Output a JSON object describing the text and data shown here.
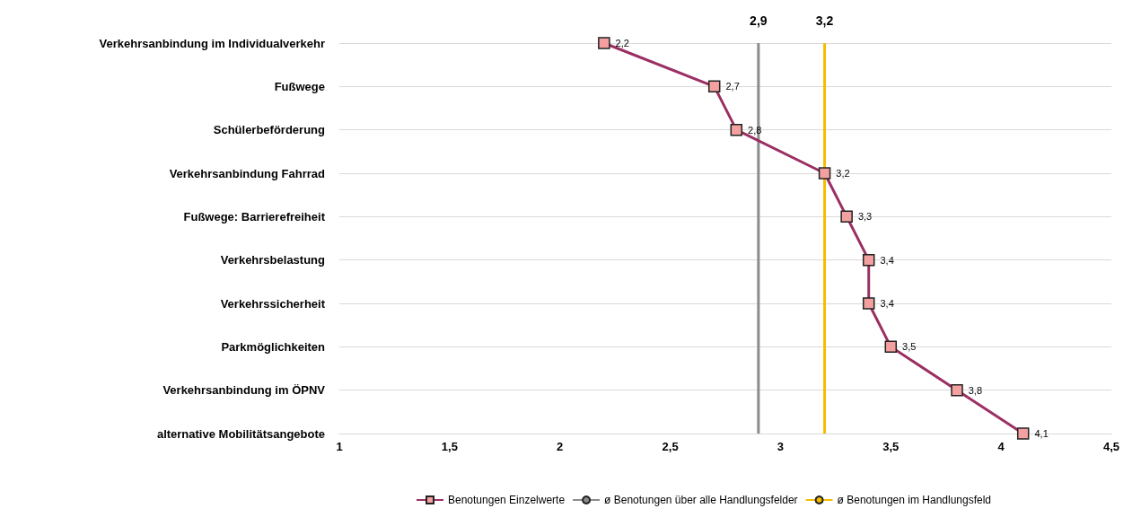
{
  "chart_data": {
    "type": "line",
    "orientation": "horizontal",
    "categories": [
      "Verkehrsanbindung im Individualverkehr",
      "Fußwege",
      "Schülerbeförderung",
      "Verkehrsanbindung Fahrrad",
      "Fußwege: Barrierefreiheit",
      "Verkehrsbelastung",
      "Verkehrssicherheit",
      "Parkmöglichkeiten",
      "Verkehrsanbindung im ÖPNV",
      "alternative Mobilitätsangebote"
    ],
    "series": [
      {
        "name": "Benotungen Einzelwerte",
        "color": "#9b2f63",
        "marker": "square",
        "values": [
          2.2,
          2.7,
          2.8,
          3.2,
          3.3,
          3.4,
          3.4,
          3.5,
          3.8,
          4.1
        ],
        "value_labels": [
          "2,2",
          "2,7",
          "2,8",
          "3,2",
          "3,3",
          "3,4",
          "3,4",
          "3,5",
          "3,8",
          "4,1"
        ]
      },
      {
        "name": "ø Benotungen über alle Handlungsfelder",
        "color": "#8c8c8c",
        "marker": "none",
        "values": [
          2.9,
          2.9,
          2.9,
          2.9,
          2.9,
          2.9,
          2.9,
          2.9,
          2.9,
          2.9
        ],
        "value_labels": [
          "2,9",
          null,
          null,
          null,
          null,
          null,
          null,
          null,
          null,
          null
        ]
      },
      {
        "name": "ø Benotungen im Handlungsfeld",
        "color": "#f5bd00",
        "marker": "none",
        "values": [
          3.2,
          3.2,
          3.2,
          3.2,
          3.2,
          3.2,
          3.2,
          3.2,
          3.2,
          3.2
        ],
        "value_labels": [
          "3,2",
          null,
          null,
          null,
          null,
          null,
          null,
          null,
          null,
          null
        ]
      }
    ],
    "xlim": [
      1,
      4.5
    ],
    "xticks": [
      1,
      {
        "value": 1.5,
        "label": "1,5"
      },
      2,
      {
        "value": 2.5,
        "label": "2,5"
      },
      3,
      {
        "value": 3.5,
        "label": "3,5"
      },
      4,
      {
        "value": 4.5,
        "label": "4,5"
      }
    ],
    "grid": "y",
    "legend": "bottom"
  }
}
